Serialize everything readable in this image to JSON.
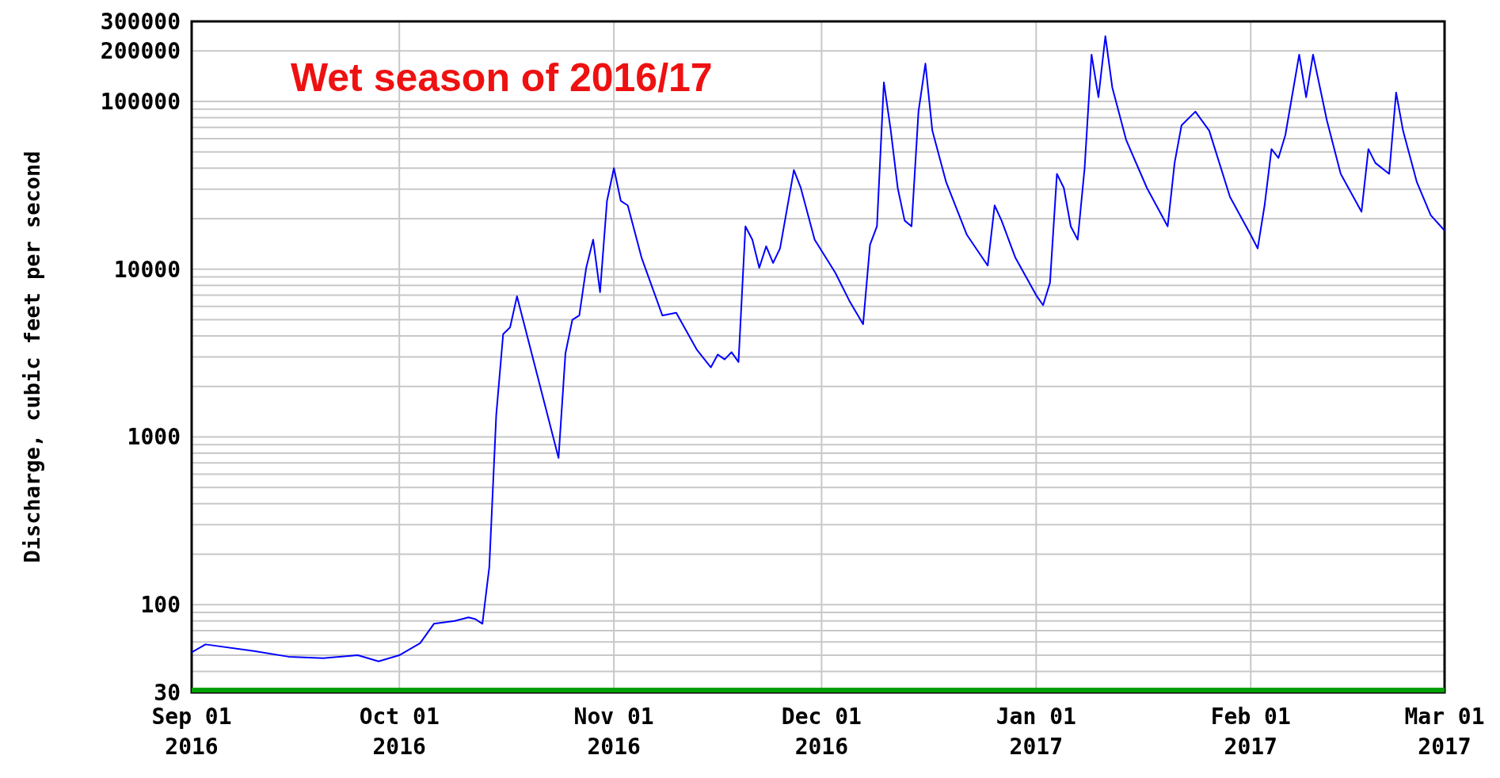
{
  "chart_data": {
    "type": "line",
    "title": "Wet season of 2016/17",
    "ylabel": "Discharge, cubic feet per second",
    "log": "y",
    "grid": true,
    "marker": "none",
    "line_style": "solid",
    "xlim": [
      "2016-09-01",
      "2017-03-01"
    ],
    "xticks": [
      {
        "value": "2016-09-01",
        "label": "Sep 01\n2016"
      },
      {
        "value": "2016-10-01",
        "label": "Oct 01\n2016"
      },
      {
        "value": "2016-11-01",
        "label": "Nov 01\n2016"
      },
      {
        "value": "2016-12-01",
        "label": "Dec 01\n2016"
      },
      {
        "value": "2017-01-01",
        "label": "Jan 01\n2017"
      },
      {
        "value": "2017-02-01",
        "label": "Feb 01\n2017"
      },
      {
        "value": "2017-03-01",
        "label": "Mar 01\n2017"
      }
    ],
    "ylim": [
      30,
      300000
    ],
    "yticks": [
      30,
      {
        "value": 40,
        "label": null
      },
      {
        "value": 50,
        "label": null
      },
      {
        "value": 60,
        "label": null
      },
      {
        "value": 70,
        "label": null
      },
      {
        "value": 80,
        "label": null
      },
      {
        "value": 90,
        "label": null
      },
      100,
      {
        "value": 200,
        "label": null
      },
      {
        "value": 300,
        "label": null
      },
      {
        "value": 400,
        "label": null
      },
      {
        "value": 500,
        "label": null
      },
      {
        "value": 600,
        "label": null
      },
      {
        "value": 700,
        "label": null
      },
      {
        "value": 800,
        "label": null
      },
      {
        "value": 900,
        "label": null
      },
      1000,
      {
        "value": 2000,
        "label": null
      },
      {
        "value": 3000,
        "label": null
      },
      {
        "value": 4000,
        "label": null
      },
      {
        "value": 5000,
        "label": null
      },
      {
        "value": 6000,
        "label": null
      },
      {
        "value": 7000,
        "label": null
      },
      {
        "value": 8000,
        "label": null
      },
      {
        "value": 9000,
        "label": null
      },
      10000,
      {
        "value": 20000,
        "label": null
      },
      {
        "value": 30000,
        "label": null
      },
      {
        "value": 40000,
        "label": null
      },
      {
        "value": 50000,
        "label": null
      },
      {
        "value": 60000,
        "label": null
      },
      {
        "value": 70000,
        "label": null
      },
      {
        "value": 80000,
        "label": null
      },
      {
        "value": 90000,
        "label": null
      },
      100000,
      200000,
      300000
    ],
    "ref_lines": [
      {
        "axis": "y",
        "value": 30,
        "color": "#00a000"
      }
    ],
    "x": [
      "2016-09-01",
      "2016-09-03",
      "2016-09-10",
      "2016-09-15",
      "2016-09-20",
      "2016-09-25",
      "2016-09-28",
      "2016-10-01",
      "2016-10-04",
      "2016-10-06",
      "2016-10-09",
      "2016-10-11",
      "2016-10-12",
      "2016-10-13",
      "2016-10-14",
      "2016-10-15",
      "2016-10-16",
      "2016-10-17",
      "2016-10-18",
      "2016-10-24",
      "2016-10-25",
      "2016-10-26",
      "2016-10-27",
      "2016-10-28",
      "2016-10-29",
      "2016-10-30",
      "2016-10-31",
      "2016-11-01",
      "2016-11-02",
      "2016-11-03",
      "2016-11-05",
      "2016-11-08",
      "2016-11-10",
      "2016-11-13",
      "2016-11-15",
      "2016-11-16",
      "2016-11-17",
      "2016-11-18",
      "2016-11-19",
      "2016-11-20",
      "2016-11-21",
      "2016-11-22",
      "2016-11-23",
      "2016-11-24",
      "2016-11-25",
      "2016-11-27",
      "2016-11-28",
      "2016-11-30",
      "2016-12-03",
      "2016-12-05",
      "2016-12-07",
      "2016-12-08",
      "2016-12-09",
      "2016-12-10",
      "2016-12-11",
      "2016-12-12",
      "2016-12-13",
      "2016-12-14",
      "2016-12-15",
      "2016-12-16",
      "2016-12-17",
      "2016-12-19",
      "2016-12-22",
      "2016-12-25",
      "2016-12-26",
      "2016-12-27",
      "2016-12-29",
      "2017-01-01",
      "2017-01-02",
      "2017-01-03",
      "2017-01-04",
      "2017-01-05",
      "2017-01-06",
      "2017-01-07",
      "2017-01-08",
      "2017-01-09",
      "2017-01-10",
      "2017-01-11",
      "2017-01-12",
      "2017-01-14",
      "2017-01-17",
      "2017-01-20",
      "2017-01-21",
      "2017-01-22",
      "2017-01-24",
      "2017-01-26",
      "2017-01-29",
      "2017-02-01",
      "2017-02-02",
      "2017-02-03",
      "2017-02-04",
      "2017-02-05",
      "2017-02-06",
      "2017-02-08",
      "2017-02-09",
      "2017-02-10",
      "2017-02-12",
      "2017-02-14",
      "2017-02-17",
      "2017-02-18",
      "2017-02-19",
      "2017-02-21",
      "2017-02-22",
      "2017-02-23",
      "2017-02-25",
      "2017-02-27",
      "2017-03-01"
    ],
    "series": [
      {
        "color": "#0000ff",
        "values": [
          52,
          58,
          53,
          49,
          48,
          50,
          46,
          50,
          59,
          77,
          80,
          84,
          82,
          77,
          168,
          1350,
          4100,
          4500,
          6900,
          750,
          3150,
          5000,
          5300,
          10200,
          15000,
          7300,
          25500,
          40000,
          25500,
          24000,
          11700,
          5300,
          5500,
          3300,
          2600,
          3100,
          2900,
          3200,
          2800,
          18000,
          15000,
          10200,
          13700,
          10900,
          13300,
          39000,
          30500,
          15000,
          9500,
          6500,
          4700,
          14000,
          18000,
          130000,
          67000,
          30500,
          19500,
          18000,
          87000,
          168000,
          67000,
          33000,
          16000,
          10500,
          24000,
          19500,
          11700,
          7000,
          6100,
          8300,
          37000,
          30500,
          18000,
          15000,
          40000,
          190000,
          106000,
          245000,
          121000,
          59000,
          30500,
          18000,
          43000,
          72000,
          87000,
          67000,
          27000,
          16000,
          13300,
          24000,
          52000,
          46000,
          63000,
          190000,
          106000,
          190000,
          77000,
          37000,
          22000,
          52000,
          43000,
          37000,
          113000,
          67000,
          33000,
          21000,
          17000
        ]
      }
    ]
  }
}
